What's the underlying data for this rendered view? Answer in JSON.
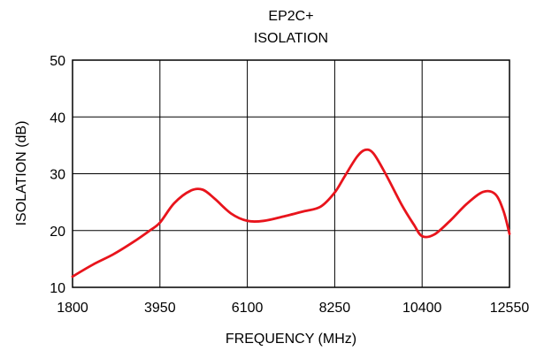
{
  "chart_data": {
    "type": "line",
    "title": "EP2C+",
    "subtitle": "ISOLATION",
    "xlabel": "FREQUENCY (MHz)",
    "ylabel": "ISOLATION (dB)",
    "xlim": [
      1800,
      12550
    ],
    "ylim": [
      10,
      50
    ],
    "xticks": [
      1800,
      3950,
      6100,
      8250,
      10400,
      12550
    ],
    "yticks": [
      10,
      20,
      30,
      40,
      50
    ],
    "xtick_labels": [
      "1800",
      "3950",
      "6100",
      "8250",
      "10400",
      "12550"
    ],
    "ytick_labels": [
      "10",
      "20",
      "30",
      "40",
      "50"
    ],
    "grid": true,
    "series": [
      {
        "color": "#e8141c",
        "x": [
          1800,
          2300,
          2800,
          3300,
          3700,
          3950,
          4300,
          4700,
          5000,
          5300,
          5700,
          6100,
          6500,
          7000,
          7500,
          7900,
          8250,
          8500,
          8800,
          9000,
          9200,
          9500,
          9900,
          10200,
          10400,
          10700,
          11100,
          11500,
          11900,
          12200,
          12400,
          12550
        ],
        "y": [
          11.9,
          14.0,
          15.8,
          18.0,
          20.0,
          21.4,
          24.8,
          27.0,
          27.2,
          25.6,
          23.0,
          21.7,
          21.7,
          22.5,
          23.4,
          24.2,
          26.7,
          29.6,
          33.0,
          34.2,
          33.6,
          30.0,
          24.5,
          21.0,
          19.0,
          19.3,
          21.8,
          24.7,
          26.8,
          26.4,
          23.5,
          19.4
        ]
      }
    ]
  }
}
